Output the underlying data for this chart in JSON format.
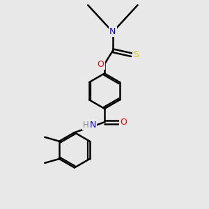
{
  "bg_color": "#e8e8e8",
  "atom_colors": {
    "N": "#0000ff",
    "O": "#ff0000",
    "S": "#cccc00",
    "H": "#888888",
    "C": "#000000"
  },
  "bond_color": "#000000",
  "bond_width": 1.8,
  "fig_width": 3.0,
  "fig_height": 3.0,
  "dpi": 100,
  "font_size_atom": 9
}
